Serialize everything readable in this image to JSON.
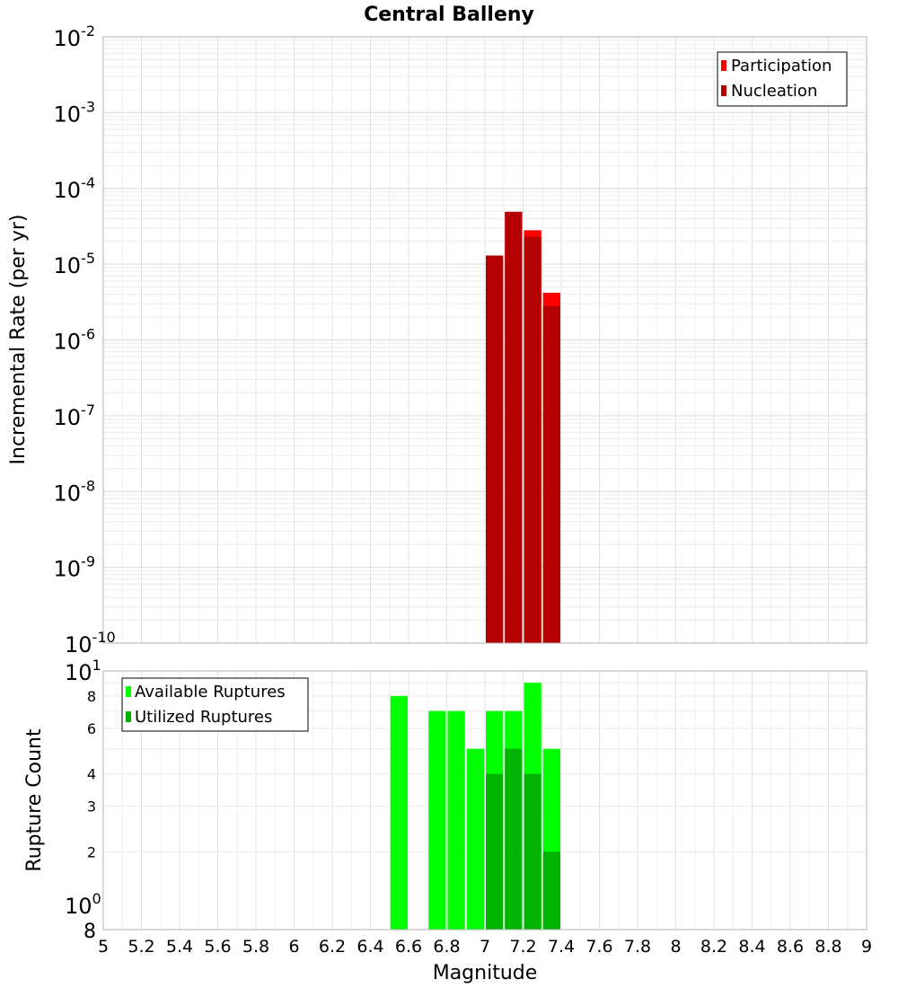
{
  "chart_data": [
    {
      "type": "bar",
      "title": "Central Balleny",
      "xlabel": "",
      "ylabel": "Incremental Rate (per yr)",
      "y_scale": "log",
      "ylim": [
        1e-10,
        0.01
      ],
      "xlim": [
        5,
        9
      ],
      "bin_width": 0.1,
      "y_ticks": [
        {
          "base": "10",
          "exp": "-2"
        },
        {
          "base": "10",
          "exp": "-3"
        },
        {
          "base": "10",
          "exp": "-4"
        },
        {
          "base": "10",
          "exp": "-5"
        },
        {
          "base": "10",
          "exp": "-6"
        },
        {
          "base": "10",
          "exp": "-7"
        },
        {
          "base": "10",
          "exp": "-8"
        },
        {
          "base": "10",
          "exp": "-9"
        },
        {
          "base": "10",
          "exp": "-10"
        }
      ],
      "legend_position": "top-right",
      "series": [
        {
          "name": "Participation",
          "color": "#ff0000",
          "x": [
            7.05,
            7.15,
            7.25,
            7.35
          ],
          "values": [
            1.3e-05,
            4.9e-05,
            2.8e-05,
            4.2e-06
          ]
        },
        {
          "name": "Nucleation",
          "color": "#b30000",
          "x": [
            7.05,
            7.15,
            7.25,
            7.35
          ],
          "values": [
            1.3e-05,
            4.9e-05,
            2.3e-05,
            2.8e-06
          ]
        }
      ]
    },
    {
      "type": "bar",
      "title": "",
      "xlabel": "Magnitude",
      "ylabel": "Rupture Count",
      "y_scale": "log",
      "ylim": [
        1,
        10
      ],
      "xlim": [
        5,
        9
      ],
      "bin_width": 0.1,
      "x_ticks": [
        "5",
        "5.2",
        "5.4",
        "5.6",
        "5.8",
        "6",
        "6.2",
        "6.4",
        "6.6",
        "6.8",
        "7",
        "7.2",
        "7.4",
        "7.6",
        "7.8",
        "8",
        "8.2",
        "8.4",
        "8.6",
        "8.8",
        "9"
      ],
      "y_ticks_minor": [
        "2",
        "3",
        "4",
        "6",
        "8"
      ],
      "y_ticks_major": [
        {
          "base": "10",
          "exp": "1"
        },
        {
          "base": "10",
          "exp": "0"
        }
      ],
      "y_bottom_label": "8",
      "legend_position": "top-left",
      "series": [
        {
          "name": "Available Ruptures",
          "color": "#00ff00",
          "x": [
            6.55,
            6.75,
            6.85,
            6.95,
            7.05,
            7.15,
            7.25,
            7.35
          ],
          "values": [
            8,
            7,
            7,
            5,
            7,
            7,
            9,
            5
          ]
        },
        {
          "name": "Utilized Ruptures",
          "color": "#00b300",
          "x": [
            7.05,
            7.15,
            7.25,
            7.35
          ],
          "values": [
            4,
            5,
            4,
            2
          ]
        }
      ]
    }
  ]
}
